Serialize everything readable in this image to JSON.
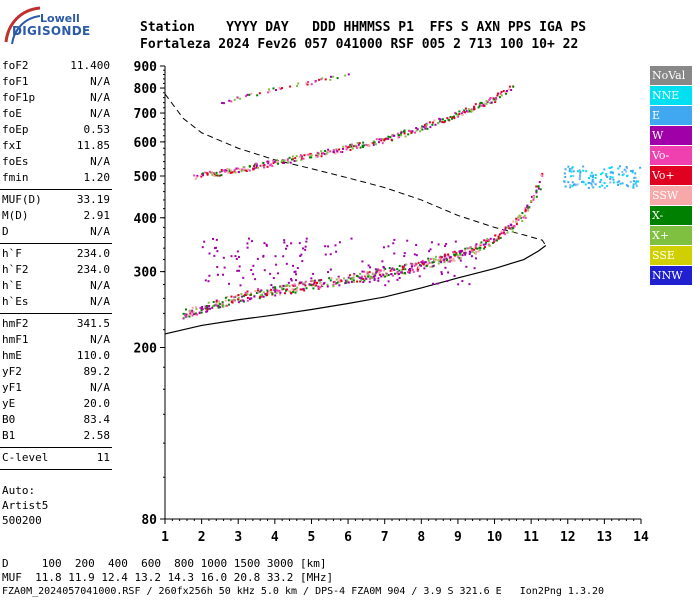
{
  "logo": {
    "top": "Lowell",
    "main": "DIGISONDE"
  },
  "header": {
    "line1": "Station    YYYY DAY   DDD HHMMSS P1  FFS S AXN PPS IGA PS",
    "line2": "Fortaleza 2024 Fev26 057 041000 RSF 005 2 713 100 10+ 22"
  },
  "params": [
    {
      "k": "foF2",
      "v": "11.400"
    },
    {
      "k": "foF1",
      "v": "N/A"
    },
    {
      "k": "foF1p",
      "v": "N/A"
    },
    {
      "k": "foE",
      "v": "N/A"
    },
    {
      "k": "foEp",
      "v": "0.53"
    },
    {
      "k": "fxI",
      "v": "11.85"
    },
    {
      "k": "foEs",
      "v": "N/A"
    },
    {
      "k": "fmin",
      "v": "1.20"
    },
    {
      "sep": true
    },
    {
      "k": "MUF(D)",
      "v": "33.19"
    },
    {
      "k": "M(D)",
      "v": "2.91"
    },
    {
      "k": "D",
      "v": "N/A"
    },
    {
      "sep": true
    },
    {
      "k": "h`F",
      "v": "234.0"
    },
    {
      "k": "h`F2",
      "v": "234.0"
    },
    {
      "k": "h`E",
      "v": "N/A"
    },
    {
      "k": "h`Es",
      "v": "N/A"
    },
    {
      "sep": true
    },
    {
      "k": "hmF2",
      "v": "341.5"
    },
    {
      "k": "hmF1",
      "v": "N/A"
    },
    {
      "k": "hmE",
      "v": "110.0"
    },
    {
      "k": "yF2",
      "v": "89.2"
    },
    {
      "k": "yF1",
      "v": "N/A"
    },
    {
      "k": "yE",
      "v": "20.0"
    },
    {
      "k": "B0",
      "v": "83.4"
    },
    {
      "k": "B1",
      "v": "2.58"
    },
    {
      "sep": true
    },
    {
      "k": "C-level",
      "v": "11"
    },
    {
      "sep": true
    }
  ],
  "auto": [
    "Auto:",
    "Artist5",
    "500200"
  ],
  "legend": [
    {
      "label": "NoVal",
      "color": "#888888"
    },
    {
      "label": "NNE",
      "color": "#00e0f0"
    },
    {
      "label": "E",
      "color": "#40a8f0"
    },
    {
      "label": "W",
      "color": "#a000a8"
    },
    {
      "label": "Vo-",
      "color": "#f040b0"
    },
    {
      "label": "Vo+",
      "color": "#e00020"
    },
    {
      "label": "SSW",
      "color": "#f8a8a8"
    },
    {
      "label": "X-",
      "color": "#008000"
    },
    {
      "label": "X+",
      "color": "#80c040"
    },
    {
      "label": "SSE",
      "color": "#d0d000"
    },
    {
      "label": "NNW",
      "color": "#2020d0"
    }
  ],
  "footer": {
    "line1": "D     100  200  400  600  800 1000 1500 3000 [km]",
    "line2": "MUF  11.8 11.9 12.4 13.2 14.3 16.0 20.8 33.2 [MHz]",
    "line3": "FZA0M_2024057041000.RSF / 260fx256h 50 kHz 5.0 km / DPS-4 FZA0M 904 / 3.9 S 321.6 E   Ion2Png 1.3.20"
  },
  "chart_data": {
    "type": "scatter",
    "title": "",
    "xlabel": "",
    "ylabel": "",
    "xlim": [
      1,
      14
    ],
    "ylim": [
      80,
      900
    ],
    "y_scale": "log",
    "x_ticks": [
      1,
      2,
      3,
      4,
      5,
      6,
      7,
      8,
      9,
      10,
      11,
      12,
      13,
      14
    ],
    "y_ticks": [
      80,
      200,
      300,
      400,
      500,
      600,
      700,
      800,
      900
    ],
    "grid": false,
    "legend_position": "right",
    "ordinary_trace": {
      "x": [
        1.5,
        2.5,
        3.5,
        4.5,
        5.5,
        6.5,
        7.5,
        8.5,
        9.5,
        10.0,
        10.5,
        10.8,
        11.0,
        11.2,
        11.3
      ],
      "y": [
        240,
        255,
        268,
        276,
        285,
        295,
        305,
        320,
        340,
        360,
        385,
        410,
        440,
        480,
        540
      ]
    },
    "echo_trace_2": {
      "x": [
        1.8,
        3,
        4,
        5,
        6,
        7,
        8,
        9,
        9.5,
        10,
        10.3,
        10.5
      ],
      "y": [
        500,
        520,
        540,
        560,
        585,
        610,
        650,
        700,
        730,
        760,
        790,
        810
      ]
    },
    "echo_trace_3": {
      "x": [
        2.5,
        3,
        3.5,
        4,
        5,
        5.5,
        6
      ],
      "y": [
        740,
        760,
        780,
        800,
        830,
        850,
        870
      ]
    },
    "high_freq_cluster": {
      "x": [
        11.8,
        12.2,
        12.6,
        13.0,
        13.4,
        13.8
      ],
      "y": [
        500,
        495,
        490,
        485,
        488,
        482
      ]
    },
    "profile_solid": {
      "x": [
        1,
        2,
        3,
        4,
        5,
        6,
        7,
        8,
        9,
        10,
        10.8,
        11.2,
        11.4
      ],
      "y": [
        215,
        225,
        232,
        238,
        245,
        253,
        262,
        275,
        290,
        305,
        320,
        335,
        345
      ]
    },
    "profile_dashed": {
      "x": [
        1,
        1.5,
        2,
        3,
        4,
        5,
        6,
        7,
        8,
        9,
        10,
        10.8,
        11.3,
        11.4
      ],
      "y": [
        775,
        680,
        630,
        580,
        545,
        520,
        495,
        470,
        440,
        405,
        380,
        365,
        355,
        345
      ]
    }
  }
}
